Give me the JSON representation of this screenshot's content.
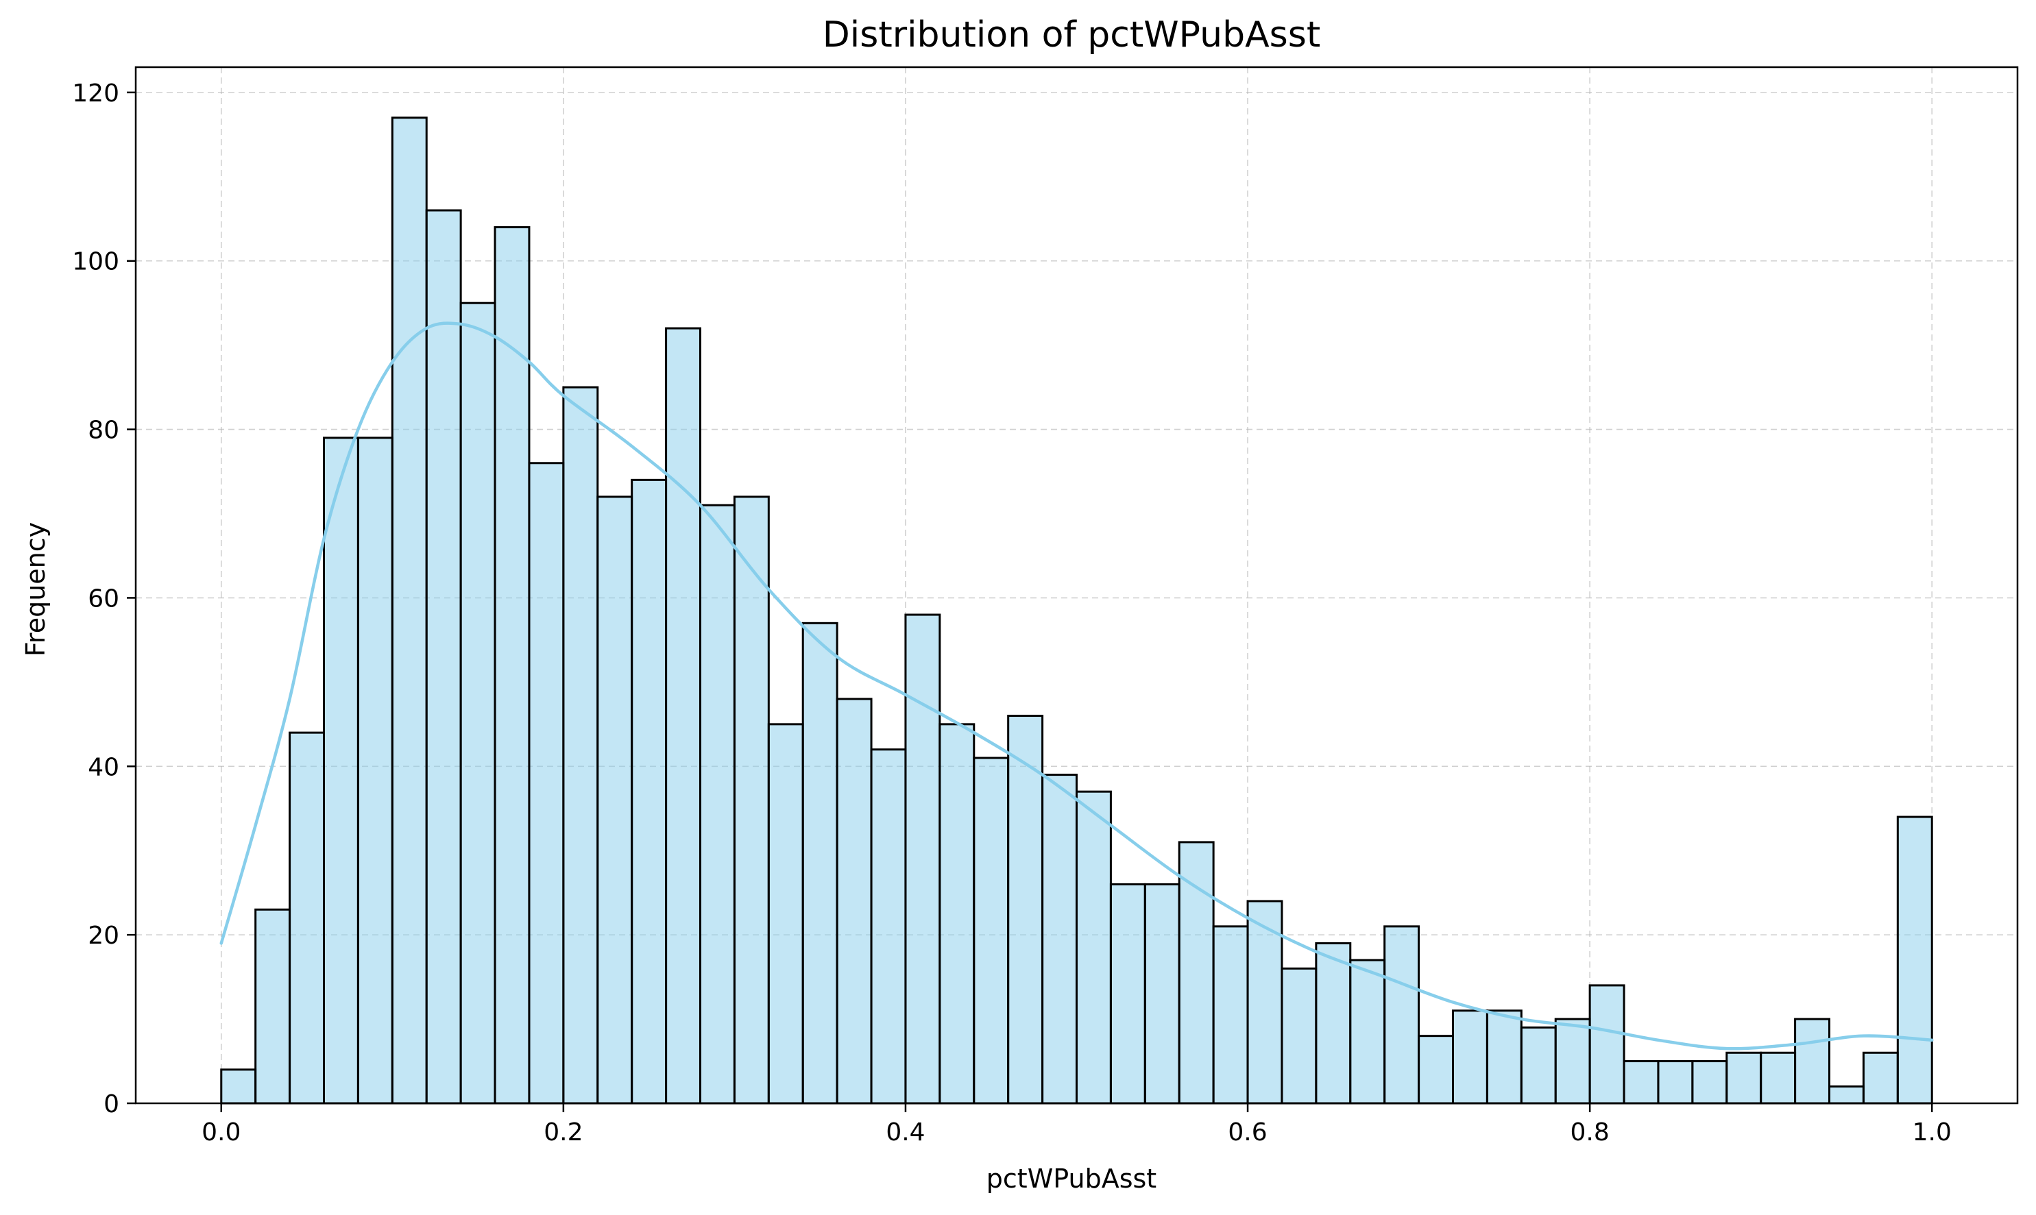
{
  "chart_data": {
    "type": "bar",
    "subtype": "histogram",
    "title": "Distribution of pctWPubAsst",
    "xlabel": "pctWPubAsst",
    "ylabel": "Frequency",
    "xlim": [
      -0.05,
      1.05
    ],
    "ylim": [
      0,
      123
    ],
    "grid": true,
    "bin_range": [
      0.0,
      1.0
    ],
    "bin_count": 50,
    "x_ticks": [
      0.0,
      0.2,
      0.4,
      0.6,
      0.8,
      1.0
    ],
    "x_tick_labels": [
      "0.0",
      "0.2",
      "0.4",
      "0.6",
      "0.8",
      "1.0"
    ],
    "y_ticks": [
      0,
      20,
      40,
      60,
      80,
      100,
      120
    ],
    "y_tick_labels": [
      "0",
      "20",
      "40",
      "60",
      "80",
      "100",
      "120"
    ],
    "values": [
      4,
      23,
      44,
      79,
      79,
      117,
      106,
      95,
      104,
      76,
      85,
      72,
      74,
      92,
      71,
      72,
      45,
      57,
      48,
      42,
      58,
      45,
      41,
      46,
      39,
      37,
      26,
      26,
      31,
      21,
      24,
      16,
      19,
      17,
      21,
      8,
      11,
      11,
      9,
      10,
      14,
      5,
      5,
      5,
      6,
      6,
      10,
      2,
      6,
      34
    ],
    "kde": {
      "x": [
        0.0,
        0.02,
        0.04,
        0.06,
        0.08,
        0.1,
        0.12,
        0.14,
        0.16,
        0.18,
        0.2,
        0.24,
        0.28,
        0.32,
        0.36,
        0.4,
        0.44,
        0.48,
        0.52,
        0.56,
        0.6,
        0.64,
        0.68,
        0.72,
        0.76,
        0.8,
        0.84,
        0.88,
        0.92,
        0.96,
        1.0
      ],
      "y": [
        19,
        33,
        48,
        67,
        80,
        88,
        92,
        92.5,
        91,
        88,
        84,
        78,
        71,
        61,
        53,
        48.5,
        44,
        39,
        33,
        27,
        22,
        18,
        15,
        12,
        10,
        9,
        7.5,
        6.5,
        7,
        8,
        7.5
      ]
    },
    "colors": {
      "bar_fill": "#87ceeb",
      "bar_fill_opacity": 0.5,
      "bar_edge": "#000000",
      "kde_line": "#87ceeb",
      "grid": "#b0b0b0",
      "axis": "#000000"
    }
  }
}
